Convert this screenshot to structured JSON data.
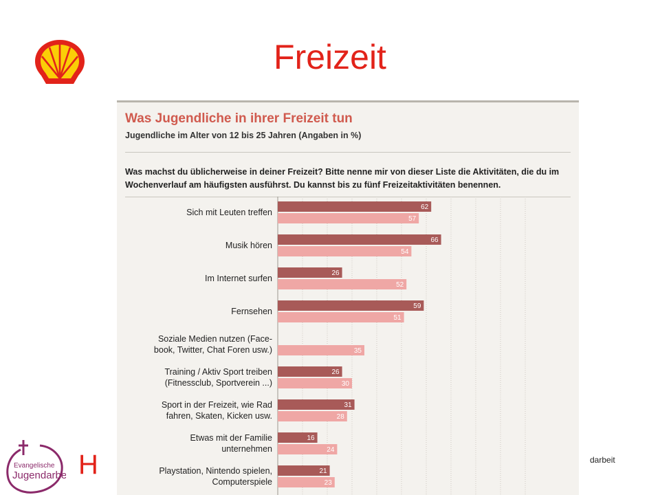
{
  "slide": {
    "title": "Freizeit",
    "footer_partial": "darbeit",
    "footer_letter": "H",
    "logo_text_line1": "Evangelische",
    "logo_text_line2": "Jugendarbeit"
  },
  "colors": {
    "title": "#e2231a",
    "chart_title": "#d05a4e",
    "series_dark": "#a85a58",
    "series_light": "#efa7a5"
  },
  "chart_data": {
    "type": "bar",
    "orientation": "horizontal",
    "title": "Was Jugendliche in ihrer Freizeit tun",
    "subtitle": "Jugendliche im Alter von 12 bis 25 Jahren (Angaben in %)",
    "question": "Was machst du üblicherweise in deiner Freizeit? Bitte nenne mir von dieser Liste die Aktivitäten, die du im Wochenverlauf am häufigsten ausführst. Du kannst bis zu fünf Freizeitaktivitäten benennen.",
    "xlim": [
      0,
      100
    ],
    "grid": true,
    "categories": [
      [
        "Sich mit Leuten treffen"
      ],
      [
        "Musik hören"
      ],
      [
        "Im Internet surfen"
      ],
      [
        "Fernsehen"
      ],
      [
        "Soziale Medien nutzen (Face-",
        "book, Twitter, Chat Foren usw.)"
      ],
      [
        "Training / Aktiv Sport treiben",
        "(Fitnessclub, Sportverein ...)"
      ],
      [
        "Sport in der Freizeit, wie Rad",
        "fahren, Skaten, Kicken usw."
      ],
      [
        "Etwas mit der Familie",
        "unternehmen"
      ],
      [
        "Playstation, Nintendo spielen,",
        "Computerspiele"
      ]
    ],
    "series": [
      {
        "values": [
          62,
          66,
          26,
          59,
          null,
          26,
          31,
          16,
          21
        ]
      },
      {
        "values": [
          57,
          54,
          52,
          51,
          35,
          30,
          28,
          24,
          23
        ]
      }
    ]
  }
}
